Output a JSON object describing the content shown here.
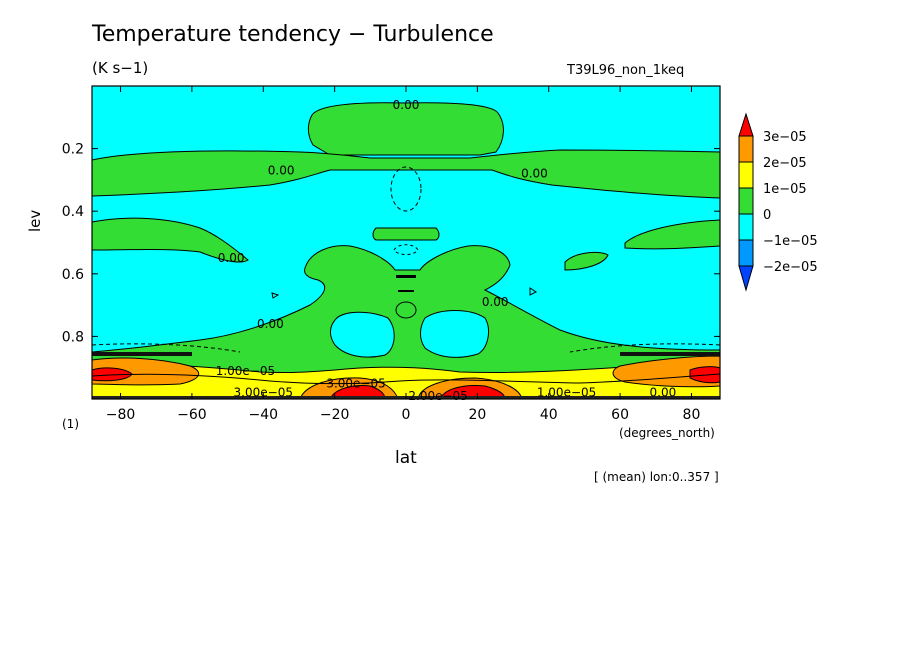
{
  "chart_data": {
    "type": "heatmap",
    "title": "Temperature tendency − Turbulence",
    "subtitle": "(K s−1)",
    "run_label": "T39L96_non_1keq",
    "xlabel": "lat",
    "x_units": "(degrees_north)",
    "ylabel": "lev",
    "y_units": "(1)",
    "footer": "[ (mean) lon:0..357 ]",
    "xlim": [
      -88,
      88
    ],
    "ylim": [
      1.0,
      0.0
    ],
    "x_ticks": [
      "−80",
      "−60",
      "−40",
      "−20",
      "0",
      "20",
      "40",
      "60",
      "80"
    ],
    "x_tick_values": [
      -80,
      -60,
      -40,
      -20,
      0,
      20,
      40,
      60,
      80
    ],
    "y_ticks": [
      "0.2",
      "0.4",
      "0.6",
      "0.8"
    ],
    "y_tick_values": [
      0.2,
      0.4,
      0.6,
      0.8
    ],
    "colorbar": {
      "levels": [
        "3e−05",
        "2e−05",
        "1e−05",
        "0",
        "−1e−05",
        "−2e−05"
      ],
      "colors": [
        "#ff0000",
        "#ff9900",
        "#ffff00",
        "#33dd33",
        "#00ffff",
        "#0099ff",
        "#0044ff"
      ]
    },
    "contour_labels": [
      {
        "text": "0.00",
        "lat": 0,
        "lev": 0.06
      },
      {
        "text": "0.00",
        "lat": -35,
        "lev": 0.27
      },
      {
        "text": "0.00",
        "lat": 36,
        "lev": 0.28
      },
      {
        "text": "0.00",
        "lat": -49,
        "lev": 0.55
      },
      {
        "text": "0.00",
        "lat": 25,
        "lev": 0.69
      },
      {
        "text": "0.00",
        "lat": -38,
        "lev": 0.76
      },
      {
        "text": "0.00",
        "lat": 72,
        "lev": 0.98
      },
      {
        "text": "1.00e−05",
        "lat": -45,
        "lev": 0.91
      },
      {
        "text": "3.00e−05",
        "lat": -14,
        "lev": 0.95
      },
      {
        "text": "3.00e−05",
        "lat": -40,
        "lev": 0.98
      },
      {
        "text": "2.00e−05",
        "lat": 9,
        "lev": 0.99
      },
      {
        "text": "1.00e−05",
        "lat": 45,
        "lev": 0.98
      }
    ]
  }
}
